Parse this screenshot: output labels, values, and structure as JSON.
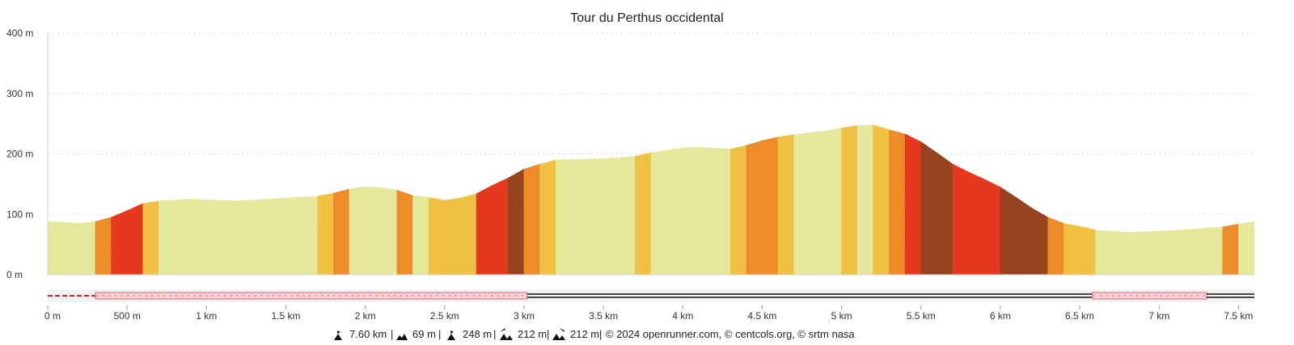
{
  "chart_data": {
    "type": "area",
    "title": "Tour du Perthus occidental",
    "xlabel": "",
    "ylabel": "",
    "xlim": [
      0,
      7600
    ],
    "ylim": [
      0,
      400
    ],
    "grid": true,
    "y_ticks": [
      {
        "value": 0,
        "label": "0 m"
      },
      {
        "value": 100,
        "label": "100 m"
      },
      {
        "value": 200,
        "label": "200 m"
      },
      {
        "value": 300,
        "label": "300 m"
      },
      {
        "value": 400,
        "label": "400 m"
      }
    ],
    "x_ticks": [
      {
        "value": 0,
        "label": "0 m"
      },
      {
        "value": 500,
        "label": "500 m"
      },
      {
        "value": 1000,
        "label": "1 km"
      },
      {
        "value": 1500,
        "label": "1.5 km"
      },
      {
        "value": 2000,
        "label": "2 km"
      },
      {
        "value": 2500,
        "label": "2.5 km"
      },
      {
        "value": 3000,
        "label": "3 km"
      },
      {
        "value": 3500,
        "label": "3.5 km"
      },
      {
        "value": 4000,
        "label": "4 km"
      },
      {
        "value": 4500,
        "label": "4.5 km"
      },
      {
        "value": 5000,
        "label": "5 km"
      },
      {
        "value": 5500,
        "label": "5.5 km"
      },
      {
        "value": 6000,
        "label": "6 km"
      },
      {
        "value": 6500,
        "label": "6.5 km"
      },
      {
        "value": 7000,
        "label": "7 km"
      },
      {
        "value": 7500,
        "label": "7.5 km"
      }
    ],
    "profile": [
      {
        "x": 0,
        "y": 88
      },
      {
        "x": 100,
        "y": 87
      },
      {
        "x": 200,
        "y": 85
      },
      {
        "x": 300,
        "y": 88
      },
      {
        "x": 400,
        "y": 95
      },
      {
        "x": 500,
        "y": 106
      },
      {
        "x": 600,
        "y": 118
      },
      {
        "x": 700,
        "y": 122
      },
      {
        "x": 900,
        "y": 125
      },
      {
        "x": 1200,
        "y": 122
      },
      {
        "x": 1500,
        "y": 127
      },
      {
        "x": 1700,
        "y": 130
      },
      {
        "x": 1800,
        "y": 135
      },
      {
        "x": 1900,
        "y": 142
      },
      {
        "x": 2000,
        "y": 146
      },
      {
        "x": 2100,
        "y": 144
      },
      {
        "x": 2200,
        "y": 140
      },
      {
        "x": 2300,
        "y": 131
      },
      {
        "x": 2400,
        "y": 128
      },
      {
        "x": 2500,
        "y": 123
      },
      {
        "x": 2600,
        "y": 127
      },
      {
        "x": 2700,
        "y": 134
      },
      {
        "x": 2800,
        "y": 148
      },
      {
        "x": 2900,
        "y": 160
      },
      {
        "x": 3000,
        "y": 175
      },
      {
        "x": 3100,
        "y": 183
      },
      {
        "x": 3200,
        "y": 190
      },
      {
        "x": 3500,
        "y": 192
      },
      {
        "x": 3700,
        "y": 196
      },
      {
        "x": 3800,
        "y": 202
      },
      {
        "x": 4000,
        "y": 210
      },
      {
        "x": 4100,
        "y": 211
      },
      {
        "x": 4300,
        "y": 208
      },
      {
        "x": 4400,
        "y": 214
      },
      {
        "x": 4500,
        "y": 222
      },
      {
        "x": 4600,
        "y": 228
      },
      {
        "x": 4700,
        "y": 232
      },
      {
        "x": 4900,
        "y": 238
      },
      {
        "x": 5000,
        "y": 243
      },
      {
        "x": 5100,
        "y": 247
      },
      {
        "x": 5200,
        "y": 248
      },
      {
        "x": 5300,
        "y": 240
      },
      {
        "x": 5400,
        "y": 233
      },
      {
        "x": 5500,
        "y": 220
      },
      {
        "x": 5600,
        "y": 202
      },
      {
        "x": 5700,
        "y": 183
      },
      {
        "x": 5800,
        "y": 170
      },
      {
        "x": 5900,
        "y": 158
      },
      {
        "x": 6000,
        "y": 145
      },
      {
        "x": 6100,
        "y": 128
      },
      {
        "x": 6200,
        "y": 110
      },
      {
        "x": 6300,
        "y": 95
      },
      {
        "x": 6400,
        "y": 85
      },
      {
        "x": 6500,
        "y": 80
      },
      {
        "x": 6600,
        "y": 74
      },
      {
        "x": 6800,
        "y": 70
      },
      {
        "x": 7000,
        "y": 72
      },
      {
        "x": 7200,
        "y": 75
      },
      {
        "x": 7400,
        "y": 79
      },
      {
        "x": 7500,
        "y": 84
      },
      {
        "x": 7600,
        "y": 88
      }
    ],
    "slope_colors": {
      "flat": "#e5e89b",
      "gentle": "#f0c142",
      "moderate": "#ef8c2a",
      "steep": "#e5381e",
      "very_steep": "#96441f"
    },
    "segments": [
      {
        "from": 0,
        "to": 300,
        "class": "flat"
      },
      {
        "from": 300,
        "to": 400,
        "class": "moderate"
      },
      {
        "from": 400,
        "to": 600,
        "class": "steep"
      },
      {
        "from": 600,
        "to": 700,
        "class": "gentle"
      },
      {
        "from": 700,
        "to": 1700,
        "class": "flat"
      },
      {
        "from": 1700,
        "to": 1800,
        "class": "gentle"
      },
      {
        "from": 1800,
        "to": 1900,
        "class": "moderate"
      },
      {
        "from": 1900,
        "to": 2200,
        "class": "flat"
      },
      {
        "from": 2200,
        "to": 2300,
        "class": "moderate"
      },
      {
        "from": 2300,
        "to": 2400,
        "class": "flat"
      },
      {
        "from": 2400,
        "to": 2700,
        "class": "gentle"
      },
      {
        "from": 2700,
        "to": 2900,
        "class": "steep"
      },
      {
        "from": 2900,
        "to": 3000,
        "class": "very_steep"
      },
      {
        "from": 3000,
        "to": 3100,
        "class": "moderate"
      },
      {
        "from": 3100,
        "to": 3200,
        "class": "gentle"
      },
      {
        "from": 3200,
        "to": 3700,
        "class": "flat"
      },
      {
        "from": 3700,
        "to": 3800,
        "class": "gentle"
      },
      {
        "from": 3800,
        "to": 4300,
        "class": "flat"
      },
      {
        "from": 4300,
        "to": 4400,
        "class": "gentle"
      },
      {
        "from": 4400,
        "to": 4600,
        "class": "moderate"
      },
      {
        "from": 4600,
        "to": 4700,
        "class": "gentle"
      },
      {
        "from": 4700,
        "to": 5000,
        "class": "flat"
      },
      {
        "from": 5000,
        "to": 5100,
        "class": "gentle"
      },
      {
        "from": 5100,
        "to": 5200,
        "class": "flat"
      },
      {
        "from": 5200,
        "to": 5300,
        "class": "gentle"
      },
      {
        "from": 5300,
        "to": 5400,
        "class": "moderate"
      },
      {
        "from": 5400,
        "to": 5500,
        "class": "steep"
      },
      {
        "from": 5500,
        "to": 5700,
        "class": "very_steep"
      },
      {
        "from": 5700,
        "to": 6000,
        "class": "steep"
      },
      {
        "from": 6000,
        "to": 6300,
        "class": "very_steep"
      },
      {
        "from": 6300,
        "to": 6400,
        "class": "moderate"
      },
      {
        "from": 6400,
        "to": 6600,
        "class": "gentle"
      },
      {
        "from": 6600,
        "to": 7400,
        "class": "flat"
      },
      {
        "from": 7400,
        "to": 7500,
        "class": "moderate"
      },
      {
        "from": 7500,
        "to": 7600,
        "class": "flat"
      }
    ],
    "surface_track": [
      {
        "from": 0,
        "to": 300,
        "style": "dashed-red"
      },
      {
        "from": 300,
        "to": 3020,
        "style": "dotted-pink"
      },
      {
        "from": 3020,
        "to": 6580,
        "style": "solid-black"
      },
      {
        "from": 6580,
        "to": 7300,
        "style": "dotted-pink"
      },
      {
        "from": 7300,
        "to": 7600,
        "style": "solid-black"
      }
    ],
    "surface_colors": {
      "dashed-red": "#d9232f",
      "dotted-pink": "#f7d0d4",
      "dotted-pink-border": "#e06874",
      "solid-black": "#111111"
    },
    "footer": {
      "distance": "7.60 km",
      "elevation_min": "69 m",
      "elevation_max": "248 m",
      "elevation_gain": "212 m",
      "elevation_loss": "212 m",
      "credits": "© 2024 openrunner.com, © centcols.org, © srtm nasa"
    }
  }
}
